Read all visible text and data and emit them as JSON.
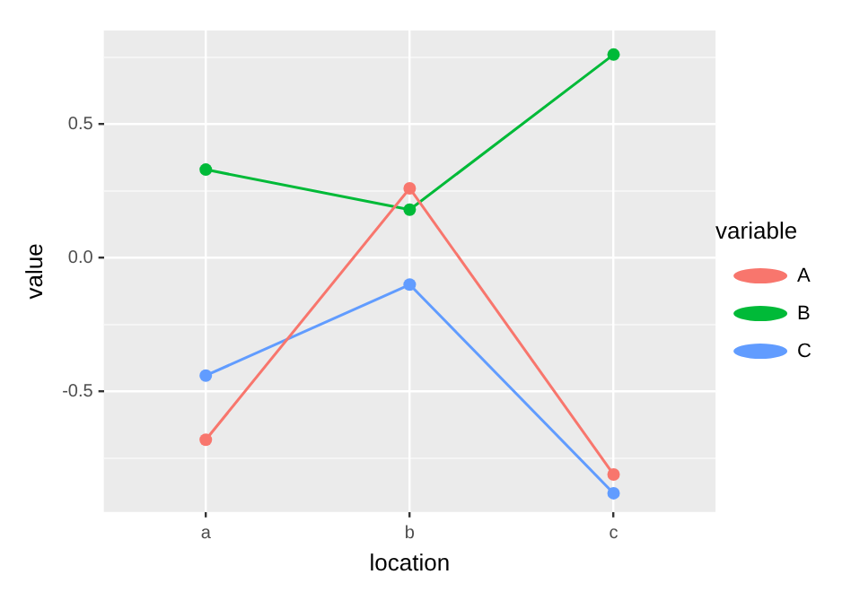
{
  "chart_data": {
    "type": "line",
    "xlabel": "location",
    "ylabel": "value",
    "legend_title": "variable",
    "categories": [
      "a",
      "b",
      "c"
    ],
    "series": [
      {
        "name": "A",
        "color": "#f8766d",
        "values": [
          -0.68,
          0.26,
          -0.81
        ]
      },
      {
        "name": "B",
        "color": "#00ba38",
        "values": [
          0.33,
          0.18,
          0.76
        ]
      },
      {
        "name": "C",
        "color": "#619cff",
        "values": [
          -0.44,
          -0.1,
          -0.88
        ]
      }
    ],
    "ylim": [
      -0.95,
      0.85
    ],
    "yticks": [
      {
        "value": -0.75,
        "label": null
      },
      {
        "value": -0.5,
        "label": "-0.5"
      },
      {
        "value": -0.25,
        "label": null
      },
      {
        "value": 0,
        "label": "0.0"
      },
      {
        "value": 0.25,
        "label": null
      },
      {
        "value": 0.5,
        "label": "0.5"
      },
      {
        "value": 0.75,
        "label": null
      }
    ],
    "grid": true,
    "legend": "right",
    "marker": "circle",
    "line_style": "solid"
  }
}
